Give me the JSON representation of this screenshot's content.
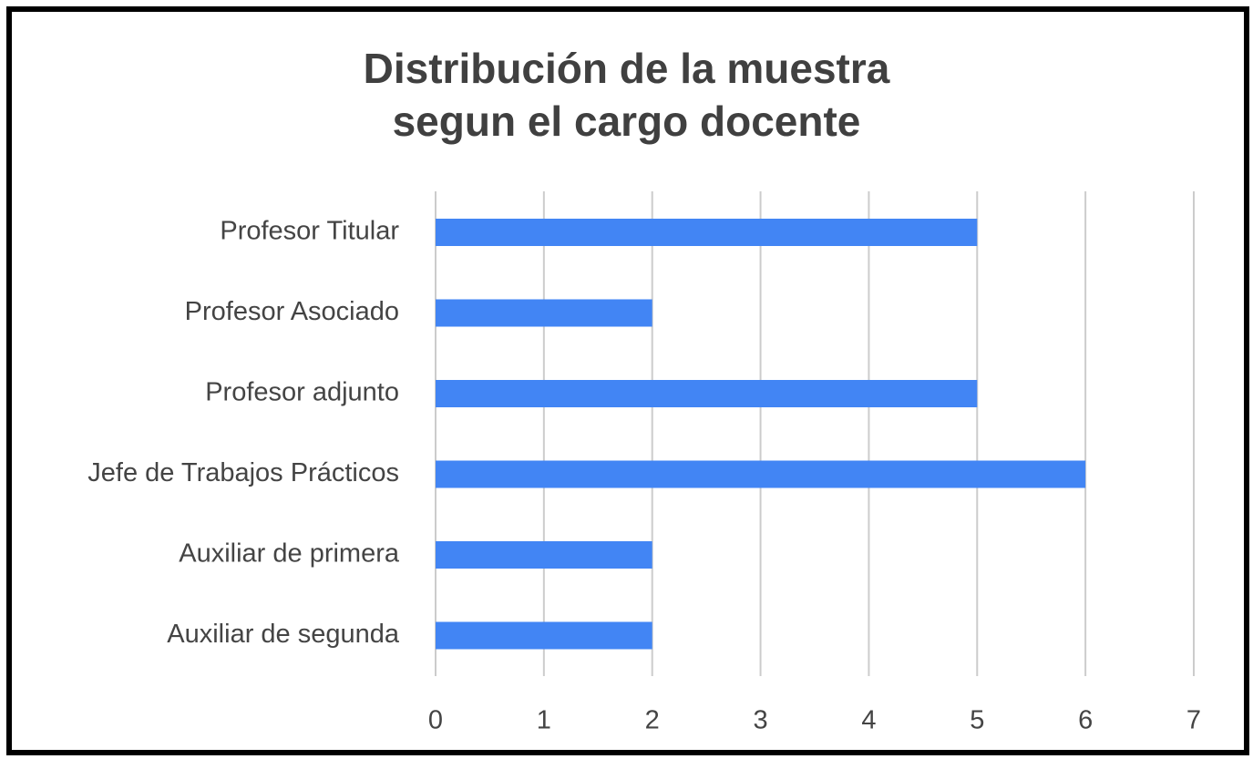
{
  "chart_data": {
    "type": "bar",
    "orientation": "horizontal",
    "title": [
      "Distribución de la muestra",
      "segun el cargo docente"
    ],
    "categories": [
      "Profesor Titular",
      "Profesor Asociado",
      "Profesor adjunto",
      "Jefe de Trabajos Prácticos",
      "Auxiliar de primera",
      "Auxiliar de segunda"
    ],
    "values": [
      5,
      2,
      5,
      6,
      2,
      2
    ],
    "xlim": [
      0,
      7
    ],
    "xticks": [
      "0",
      "1",
      "2",
      "3",
      "4",
      "5",
      "6",
      "7"
    ],
    "grid": "vertical",
    "legend": "none",
    "colors": {
      "bar": "#4285f4",
      "grid": "#cccccc",
      "text": "#444444",
      "title": "#404040",
      "frame": "#000000"
    }
  }
}
